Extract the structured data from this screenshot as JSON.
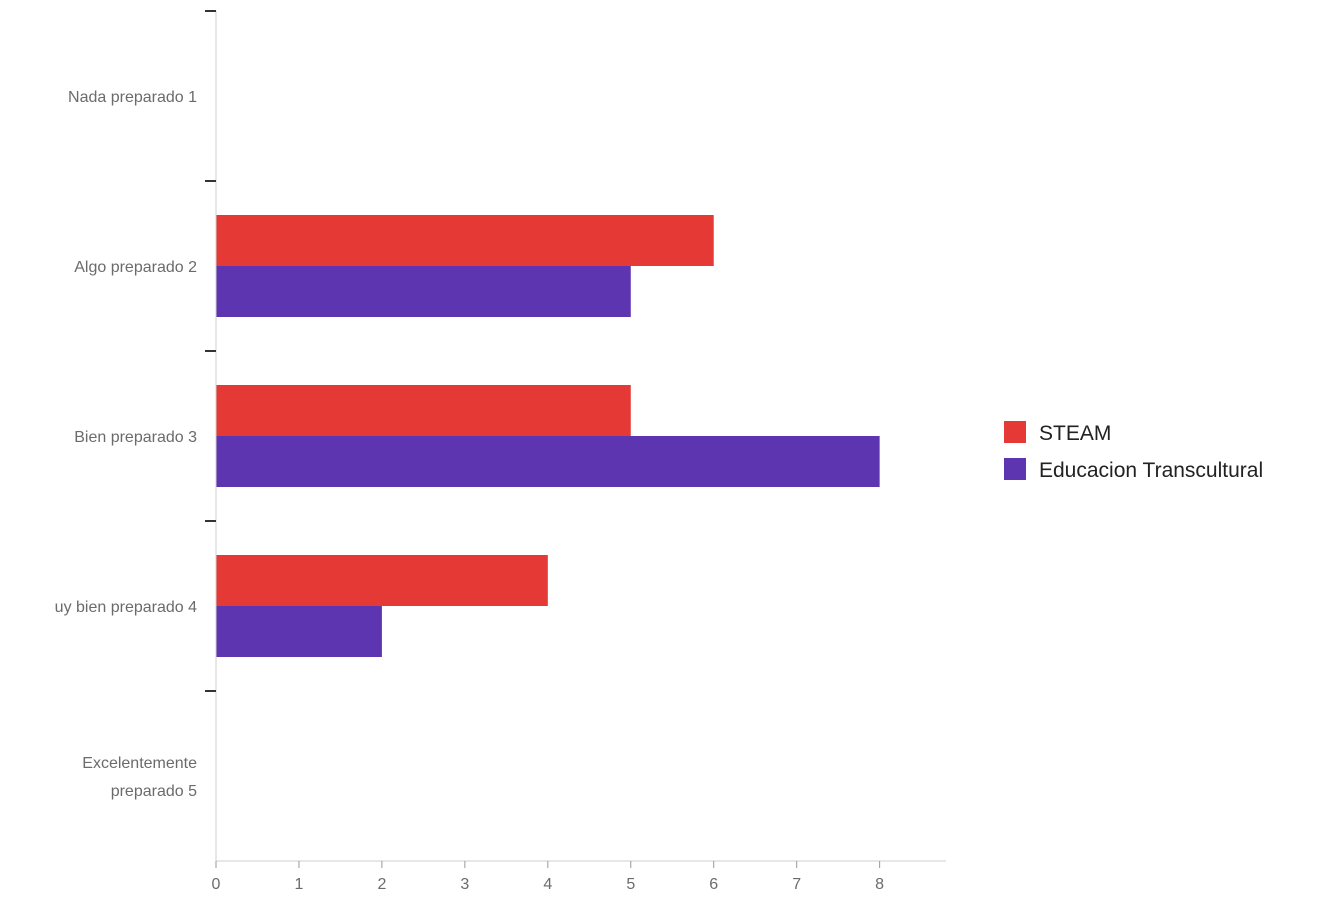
{
  "chart_data": {
    "type": "bar",
    "orientation": "horizontal",
    "categories": [
      "Nada preparado 1",
      "Algo preparado 2",
      "Bien preparado 3",
      "uy bien preparado 4",
      "Excelentemente preparado 5"
    ],
    "category_lines": [
      [
        "Nada preparado 1"
      ],
      [
        "Algo preparado 2"
      ],
      [
        "Bien preparado 3"
      ],
      [
        "uy bien preparado 4"
      ],
      [
        "Excelentemente",
        "preparado 5"
      ]
    ],
    "series": [
      {
        "name": "STEAM",
        "color": "#e53935",
        "values": [
          0,
          6,
          5,
          4,
          0
        ]
      },
      {
        "name": "Educacion Transcultural",
        "color": "#5e35b1",
        "values": [
          0,
          5,
          8,
          2,
          0
        ]
      }
    ],
    "xlim": [
      0,
      8.8
    ],
    "xticks": [
      0,
      1,
      2,
      3,
      4,
      5,
      6,
      7,
      8
    ],
    "title": "",
    "xlabel": "",
    "ylabel": "",
    "grid": false,
    "legend_position": "right"
  }
}
